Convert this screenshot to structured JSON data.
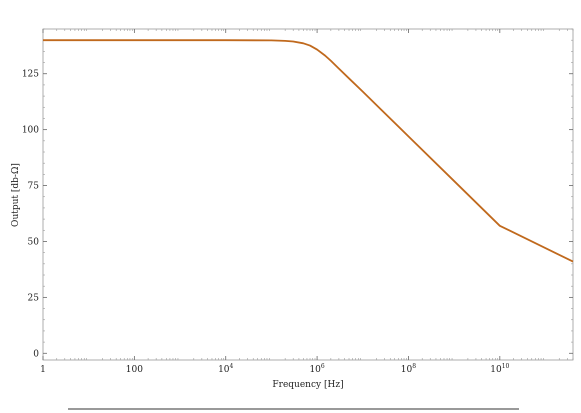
{
  "chart_data": {
    "type": "line",
    "title": "",
    "xlabel": "Frequency [Hz]",
    "ylabel": "Output [db-Ω]",
    "x_scale": "log",
    "xlim": [
      1,
      400000000000
    ],
    "ylim": [
      -3,
      145
    ],
    "grid": false,
    "legend": "none",
    "x_ticks": [
      {
        "value": 1,
        "base": "1",
        "exp": ""
      },
      {
        "value": 100,
        "base": "100",
        "exp": ""
      },
      {
        "value": 10000,
        "base": "10",
        "exp": "4"
      },
      {
        "value": 1000000,
        "base": "10",
        "exp": "6"
      },
      {
        "value": 100000000,
        "base": "10",
        "exp": "8"
      },
      {
        "value": 10000000000,
        "base": "10",
        "exp": "10"
      }
    ],
    "y_ticks": [
      0,
      25,
      50,
      75,
      100,
      125
    ],
    "series": [
      {
        "color": "#c0691d",
        "x": [
          1,
          10,
          100,
          1000,
          10000,
          100000,
          200000,
          300000,
          500000,
          700000,
          1000000,
          1500000,
          2000000,
          3000000,
          5000000,
          10000000,
          100000000,
          1000000000,
          10000000000,
          400000000000
        ],
        "y": [
          140,
          140,
          140,
          140,
          140,
          139.9,
          139.7,
          139.4,
          138.6,
          137.6,
          135.8,
          133.1,
          130.8,
          127.3,
          122.9,
          117,
          97,
          77,
          57,
          41
        ]
      }
    ]
  }
}
